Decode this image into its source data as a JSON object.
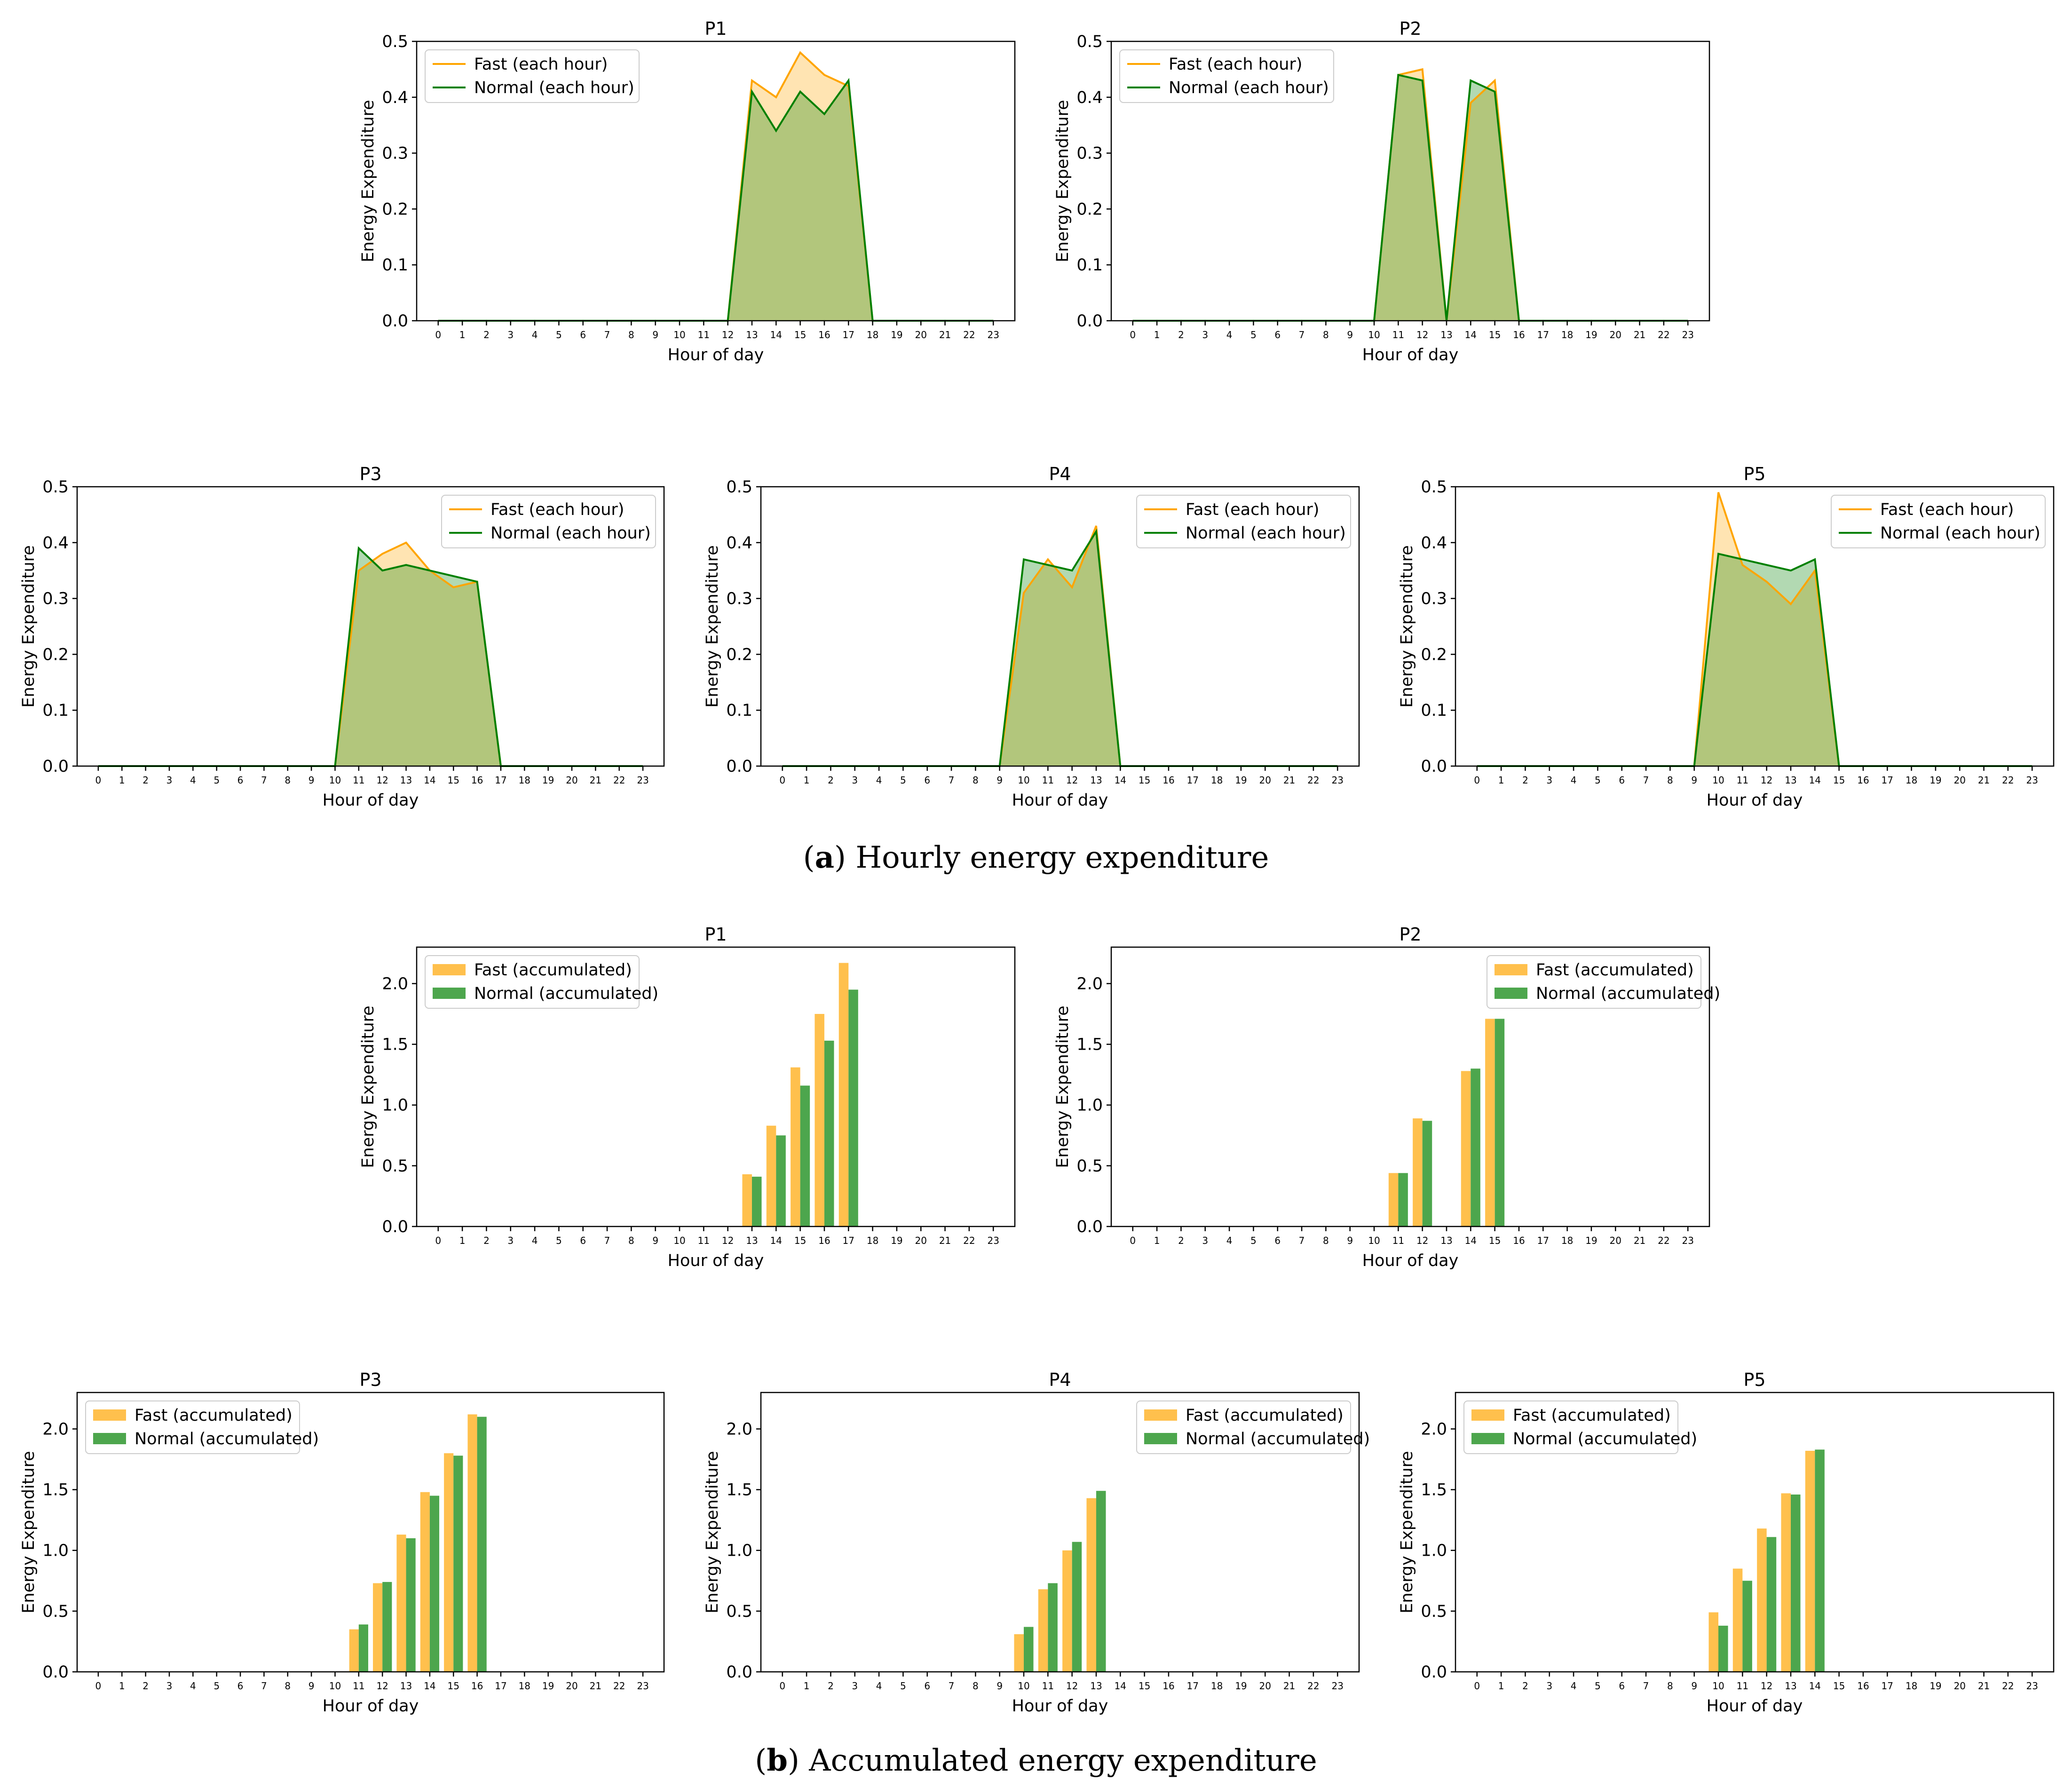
{
  "figure_captions": {
    "a": {
      "label": "a",
      "text": "Hourly energy expenditure"
    },
    "b": {
      "label": "b",
      "text": "Accumulated energy expenditure"
    }
  },
  "colors": {
    "fast": "#FFA500",
    "normal": "#008000",
    "fast_bar": "#FFC04D",
    "normal_bar": "#4DA64D"
  },
  "chart_data": [
    {
      "id": "a1",
      "type": "area",
      "title": "P1",
      "xlabel": "Hour of day",
      "ylabel": "Energy Expenditure",
      "x": [
        0,
        1,
        2,
        3,
        4,
        5,
        6,
        7,
        8,
        9,
        10,
        11,
        12,
        13,
        14,
        15,
        16,
        17,
        18,
        19,
        20,
        21,
        22,
        23
      ],
      "ylim": [
        0,
        0.5
      ],
      "yticks": [
        "0.0",
        "0.1",
        "0.2",
        "0.3",
        "0.4",
        "0.5"
      ],
      "legend": "upper left",
      "series": [
        {
          "name": "Fast (each hour)",
          "values": [
            0,
            0,
            0,
            0,
            0,
            0,
            0,
            0,
            0,
            0,
            0,
            0,
            0,
            0.43,
            0.4,
            0.48,
            0.44,
            0.42,
            0,
            0,
            0,
            0,
            0,
            0
          ]
        },
        {
          "name": "Normal (each hour)",
          "values": [
            0,
            0,
            0,
            0,
            0,
            0,
            0,
            0,
            0,
            0,
            0,
            0,
            0,
            0.41,
            0.34,
            0.41,
            0.37,
            0.43,
            0,
            0,
            0,
            0,
            0,
            0
          ]
        }
      ]
    },
    {
      "id": "a2",
      "type": "area",
      "title": "P2",
      "xlabel": "Hour of day",
      "ylabel": "Energy Expenditure",
      "x": [
        0,
        1,
        2,
        3,
        4,
        5,
        6,
        7,
        8,
        9,
        10,
        11,
        12,
        13,
        14,
        15,
        16,
        17,
        18,
        19,
        20,
        21,
        22,
        23
      ],
      "ylim": [
        0,
        0.5
      ],
      "yticks": [
        "0.0",
        "0.1",
        "0.2",
        "0.3",
        "0.4",
        "0.5"
      ],
      "legend": "upper left",
      "series": [
        {
          "name": "Fast (each hour)",
          "values": [
            0,
            0,
            0,
            0,
            0,
            0,
            0,
            0,
            0,
            0,
            0,
            0.44,
            0.45,
            0,
            0.39,
            0.43,
            0,
            0,
            0,
            0,
            0,
            0,
            0,
            0
          ]
        },
        {
          "name": "Normal (each hour)",
          "values": [
            0,
            0,
            0,
            0,
            0,
            0,
            0,
            0,
            0,
            0,
            0,
            0.44,
            0.43,
            0,
            0.43,
            0.41,
            0,
            0,
            0,
            0,
            0,
            0,
            0,
            0
          ]
        }
      ]
    },
    {
      "id": "a3",
      "type": "area",
      "title": "P3",
      "xlabel": "Hour of day",
      "ylabel": "Energy Expenditure",
      "x": [
        0,
        1,
        2,
        3,
        4,
        5,
        6,
        7,
        8,
        9,
        10,
        11,
        12,
        13,
        14,
        15,
        16,
        17,
        18,
        19,
        20,
        21,
        22,
        23
      ],
      "ylim": [
        0,
        0.5
      ],
      "yticks": [
        "0.0",
        "0.1",
        "0.2",
        "0.3",
        "0.4",
        "0.5"
      ],
      "legend": "upper right",
      "series": [
        {
          "name": "Fast (each hour)",
          "values": [
            0,
            0,
            0,
            0,
            0,
            0,
            0,
            0,
            0,
            0,
            0,
            0.35,
            0.38,
            0.4,
            0.35,
            0.32,
            0.33,
            0,
            0,
            0,
            0,
            0,
            0,
            0
          ]
        },
        {
          "name": "Normal (each hour)",
          "values": [
            0,
            0,
            0,
            0,
            0,
            0,
            0,
            0,
            0,
            0,
            0,
            0.39,
            0.35,
            0.36,
            0.35,
            0.34,
            0.33,
            0,
            0,
            0,
            0,
            0,
            0,
            0
          ]
        }
      ]
    },
    {
      "id": "a4",
      "type": "area",
      "title": "P4",
      "xlabel": "Hour of day",
      "ylabel": "Energy Expenditure",
      "x": [
        0,
        1,
        2,
        3,
        4,
        5,
        6,
        7,
        8,
        9,
        10,
        11,
        12,
        13,
        14,
        15,
        16,
        17,
        18,
        19,
        20,
        21,
        22,
        23
      ],
      "ylim": [
        0,
        0.5
      ],
      "yticks": [
        "0.0",
        "0.1",
        "0.2",
        "0.3",
        "0.4",
        "0.5"
      ],
      "legend": "upper right",
      "series": [
        {
          "name": "Fast (each hour)",
          "values": [
            0,
            0,
            0,
            0,
            0,
            0,
            0,
            0,
            0,
            0,
            0.31,
            0.37,
            0.32,
            0.43,
            0,
            0,
            0,
            0,
            0,
            0,
            0,
            0,
            0,
            0
          ]
        },
        {
          "name": "Normal (each hour)",
          "values": [
            0,
            0,
            0,
            0,
            0,
            0,
            0,
            0,
            0,
            0,
            0.37,
            0.36,
            0.35,
            0.42,
            0,
            0,
            0,
            0,
            0,
            0,
            0,
            0,
            0,
            0
          ]
        }
      ]
    },
    {
      "id": "a5",
      "type": "area",
      "title": "P5",
      "xlabel": "Hour of day",
      "ylabel": "Energy Expenditure",
      "x": [
        0,
        1,
        2,
        3,
        4,
        5,
        6,
        7,
        8,
        9,
        10,
        11,
        12,
        13,
        14,
        15,
        16,
        17,
        18,
        19,
        20,
        21,
        22,
        23
      ],
      "ylim": [
        0,
        0.5
      ],
      "yticks": [
        "0.0",
        "0.1",
        "0.2",
        "0.3",
        "0.4",
        "0.5"
      ],
      "legend": "upper right",
      "series": [
        {
          "name": "Fast (each hour)",
          "values": [
            0,
            0,
            0,
            0,
            0,
            0,
            0,
            0,
            0,
            0,
            0.49,
            0.36,
            0.33,
            0.29,
            0.35,
            0,
            0,
            0,
            0,
            0,
            0,
            0,
            0,
            0
          ]
        },
        {
          "name": "Normal (each hour)",
          "values": [
            0,
            0,
            0,
            0,
            0,
            0,
            0,
            0,
            0,
            0,
            0.38,
            0.37,
            0.36,
            0.35,
            0.37,
            0,
            0,
            0,
            0,
            0,
            0,
            0,
            0,
            0
          ]
        }
      ]
    },
    {
      "id": "b1",
      "type": "bar",
      "title": "P1",
      "xlabel": "Hour of day",
      "ylabel": "Energy Expenditure",
      "categories": [
        "0",
        "1",
        "2",
        "3",
        "4",
        "5",
        "6",
        "7",
        "8",
        "9",
        "10",
        "11",
        "12",
        "13",
        "14",
        "15",
        "16",
        "17",
        "18",
        "19",
        "20",
        "21",
        "22",
        "23"
      ],
      "ylim": [
        0,
        2.3
      ],
      "yticks": [
        "0.0",
        "0.5",
        "1.0",
        "1.5",
        "2.0"
      ],
      "legend": "upper left",
      "series": [
        {
          "name": "Fast (accumulated)",
          "values": [
            0,
            0,
            0,
            0,
            0,
            0,
            0,
            0,
            0,
            0,
            0,
            0,
            0,
            0.43,
            0.83,
            1.31,
            1.75,
            2.17,
            0,
            0,
            0,
            0,
            0,
            0
          ]
        },
        {
          "name": "Normal (accumulated)",
          "values": [
            0,
            0,
            0,
            0,
            0,
            0,
            0,
            0,
            0,
            0,
            0,
            0,
            0,
            0.41,
            0.75,
            1.16,
            1.53,
            1.95,
            0,
            0,
            0,
            0,
            0,
            0
          ]
        }
      ]
    },
    {
      "id": "b2",
      "type": "bar",
      "title": "P2",
      "xlabel": "Hour of day",
      "ylabel": "Energy Expenditure",
      "categories": [
        "0",
        "1",
        "2",
        "3",
        "4",
        "5",
        "6",
        "7",
        "8",
        "9",
        "10",
        "11",
        "12",
        "13",
        "14",
        "15",
        "16",
        "17",
        "18",
        "19",
        "20",
        "21",
        "22",
        "23"
      ],
      "ylim": [
        0,
        2.3
      ],
      "yticks": [
        "0.0",
        "0.5",
        "1.0",
        "1.5",
        "2.0"
      ],
      "legend": "upper right",
      "series": [
        {
          "name": "Fast (accumulated)",
          "values": [
            0,
            0,
            0,
            0,
            0,
            0,
            0,
            0,
            0,
            0,
            0,
            0.44,
            0.89,
            0,
            1.28,
            1.71,
            0,
            0,
            0,
            0,
            0,
            0,
            0,
            0
          ]
        },
        {
          "name": "Normal (accumulated)",
          "values": [
            0,
            0,
            0,
            0,
            0,
            0,
            0,
            0,
            0,
            0,
            0,
            0.44,
            0.87,
            0,
            1.3,
            1.71,
            0,
            0,
            0,
            0,
            0,
            0,
            0,
            0
          ]
        }
      ]
    },
    {
      "id": "b3",
      "type": "bar",
      "title": "P3",
      "xlabel": "Hour of day",
      "ylabel": "Energy Expenditure",
      "categories": [
        "0",
        "1",
        "2",
        "3",
        "4",
        "5",
        "6",
        "7",
        "8",
        "9",
        "10",
        "11",
        "12",
        "13",
        "14",
        "15",
        "16",
        "17",
        "18",
        "19",
        "20",
        "21",
        "22",
        "23"
      ],
      "ylim": [
        0,
        2.3
      ],
      "yticks": [
        "0.0",
        "0.5",
        "1.0",
        "1.5",
        "2.0"
      ],
      "legend": "upper left",
      "series": [
        {
          "name": "Fast (accumulated)",
          "values": [
            0,
            0,
            0,
            0,
            0,
            0,
            0,
            0,
            0,
            0,
            0,
            0.35,
            0.73,
            1.13,
            1.48,
            1.8,
            2.12,
            0,
            0,
            0,
            0,
            0,
            0,
            0
          ]
        },
        {
          "name": "Normal (accumulated)",
          "values": [
            0,
            0,
            0,
            0,
            0,
            0,
            0,
            0,
            0,
            0,
            0,
            0.39,
            0.74,
            1.1,
            1.45,
            1.78,
            2.1,
            0,
            0,
            0,
            0,
            0,
            0,
            0
          ]
        }
      ]
    },
    {
      "id": "b4",
      "type": "bar",
      "title": "P4",
      "xlabel": "Hour of day",
      "ylabel": "Energy Expenditure",
      "categories": [
        "0",
        "1",
        "2",
        "3",
        "4",
        "5",
        "6",
        "7",
        "8",
        "9",
        "10",
        "11",
        "12",
        "13",
        "14",
        "15",
        "16",
        "17",
        "18",
        "19",
        "20",
        "21",
        "22",
        "23"
      ],
      "ylim": [
        0,
        2.3
      ],
      "yticks": [
        "0.0",
        "0.5",
        "1.0",
        "1.5",
        "2.0"
      ],
      "legend": "upper right",
      "series": [
        {
          "name": "Fast (accumulated)",
          "values": [
            0,
            0,
            0,
            0,
            0,
            0,
            0,
            0,
            0,
            0,
            0.31,
            0.68,
            1.0,
            1.43,
            0,
            0,
            0,
            0,
            0,
            0,
            0,
            0,
            0,
            0
          ]
        },
        {
          "name": "Normal (accumulated)",
          "values": [
            0,
            0,
            0,
            0,
            0,
            0,
            0,
            0,
            0,
            0,
            0.37,
            0.73,
            1.07,
            1.49,
            0,
            0,
            0,
            0,
            0,
            0,
            0,
            0,
            0,
            0
          ]
        }
      ]
    },
    {
      "id": "b5",
      "type": "bar",
      "title": "P5",
      "xlabel": "Hour of day",
      "ylabel": "Energy Expenditure",
      "categories": [
        "0",
        "1",
        "2",
        "3",
        "4",
        "5",
        "6",
        "7",
        "8",
        "9",
        "10",
        "11",
        "12",
        "13",
        "14",
        "15",
        "16",
        "17",
        "18",
        "19",
        "20",
        "21",
        "22",
        "23"
      ],
      "ylim": [
        0,
        2.3
      ],
      "yticks": [
        "0.0",
        "0.5",
        "1.0",
        "1.5",
        "2.0"
      ],
      "legend": "upper left",
      "series": [
        {
          "name": "Fast (accumulated)",
          "values": [
            0,
            0,
            0,
            0,
            0,
            0,
            0,
            0,
            0,
            0,
            0.49,
            0.85,
            1.18,
            1.47,
            1.82,
            0,
            0,
            0,
            0,
            0,
            0,
            0,
            0,
            0
          ]
        },
        {
          "name": "Normal (accumulated)",
          "values": [
            0,
            0,
            0,
            0,
            0,
            0,
            0,
            0,
            0,
            0,
            0.38,
            0.75,
            1.11,
            1.46,
            1.83,
            0,
            0,
            0,
            0,
            0,
            0,
            0,
            0,
            0
          ]
        }
      ]
    }
  ]
}
